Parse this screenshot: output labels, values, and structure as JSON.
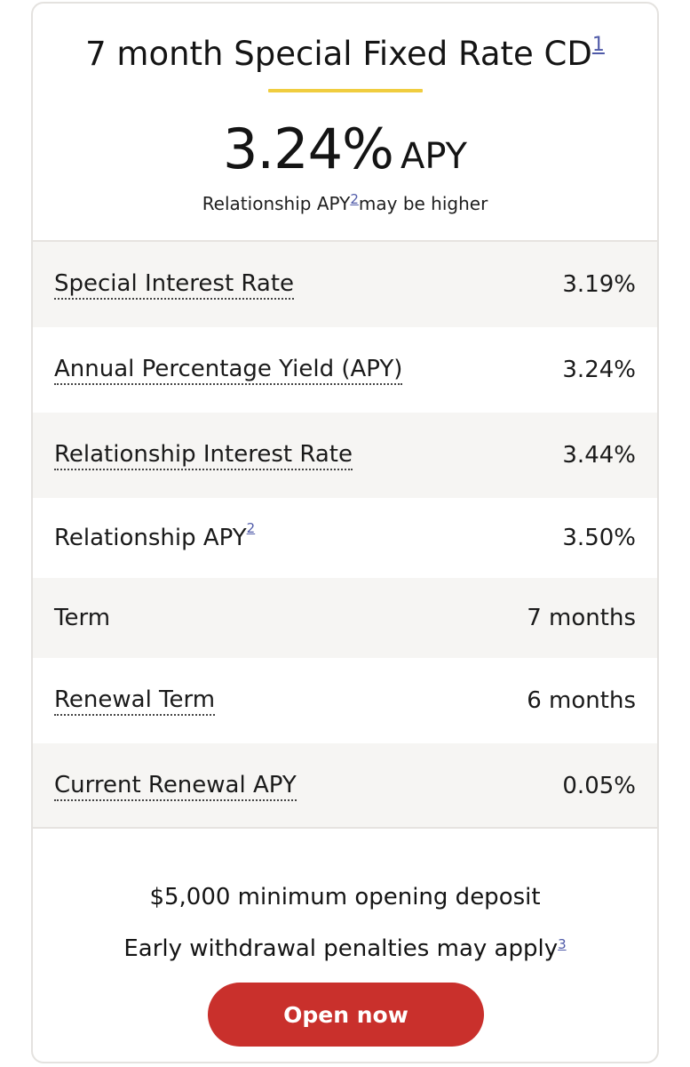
{
  "header": {
    "title": "7 month Special Fixed Rate CD",
    "title_footnote": "1",
    "apy_value": "3.24%",
    "apy_unit": "APY",
    "relationship_note_prefix": "Relationship APY",
    "relationship_note_footnote": "2",
    "relationship_note_suffix": "may be higher"
  },
  "rows": [
    {
      "label": "Special Interest Rate",
      "value": "3.19%"
    },
    {
      "label": "Annual Percentage Yield (APY)",
      "value": "3.24%"
    },
    {
      "label": "Relationship Interest Rate",
      "value": "3.44%"
    },
    {
      "label": "Relationship APY",
      "footnote": "2",
      "value": "3.50%"
    },
    {
      "label": "Term",
      "value": "7 months"
    },
    {
      "label": "Renewal Term",
      "value": "6 months"
    },
    {
      "label": "Current Renewal APY",
      "value": "0.05%"
    }
  ],
  "footer": {
    "min_deposit": "$5,000 minimum opening deposit",
    "penalty": "Early withdrawal penalties may apply",
    "penalty_footnote": "3",
    "open_button": "Open now"
  },
  "colors": {
    "accent_gold": "#f0cd3f",
    "button_red": "#c9302c",
    "row_shade": "#f6f5f3",
    "footnote_link": "#4f5aa8"
  }
}
